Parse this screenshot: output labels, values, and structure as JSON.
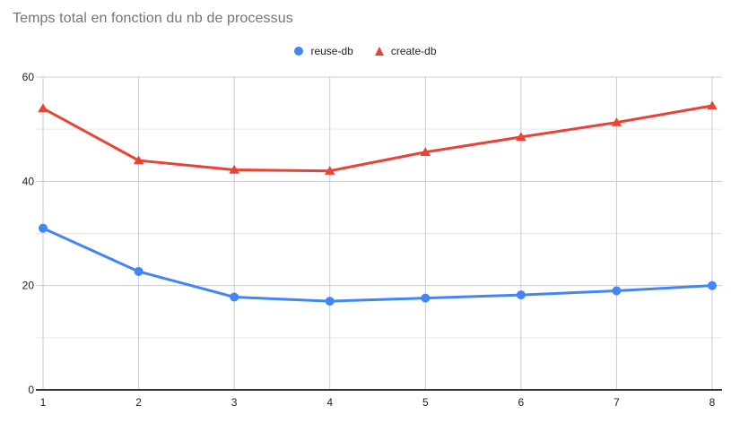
{
  "chart_data": {
    "type": "line",
    "title": "Temps total en fonction du nb de processus",
    "x": [
      1,
      2,
      3,
      4,
      5,
      6,
      7,
      8
    ],
    "series": [
      {
        "name": "reuse-db",
        "color": "#4285F4",
        "marker": "circle",
        "values": [
          31,
          22.7,
          17.8,
          17,
          17.6,
          18.2,
          19,
          20
        ]
      },
      {
        "name": "create-db",
        "color": "#EA4335",
        "marker": "triangle",
        "values": [
          54,
          44,
          42.2,
          42,
          45.6,
          48.5,
          51.3,
          54.5
        ]
      }
    ],
    "xlabel": "",
    "ylabel": "",
    "ylim": [
      0,
      60
    ],
    "yticks_major": [
      0,
      20,
      40,
      60
    ],
    "yticks_minor": [
      10,
      30,
      50
    ],
    "grid": true,
    "legend_position": "top-center",
    "colors": {
      "title": "#757575",
      "tick_label": "#222222",
      "legend_text": "#222222",
      "major_gridline": "#cccccc",
      "minor_gridline": "#e6e6e6",
      "vertical_gridline": "#cccccc",
      "axis_line": "#333333",
      "background": "#ffffff"
    }
  }
}
